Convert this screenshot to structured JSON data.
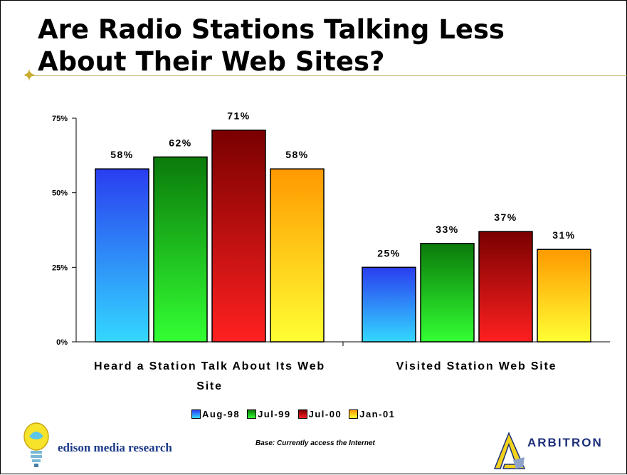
{
  "slide": {
    "title_line1": "Are Radio Stations Talking Less",
    "title_line2": "About Their Web Sites?",
    "base_note": "Base: Currently access the Internet",
    "edison_text": "edison media research",
    "arbitron_text": "ARBITRON"
  },
  "colors": {
    "Aug-98": [
      "#2a3df0",
      "#33d8ff"
    ],
    "Jul-99": [
      "#0a7a0a",
      "#33ff33"
    ],
    "Jul-00": [
      "#7a0000",
      "#ff2020"
    ],
    "Jan-01": [
      "#ff9900",
      "#ffff33"
    ]
  },
  "chart_data": {
    "type": "bar",
    "title": "Are Radio Stations Talking Less About Their Web Sites?",
    "categories": [
      "Heard a Station Talk About Its Web Site",
      "Visited Station Web Site"
    ],
    "series": [
      {
        "name": "Aug-98",
        "values": [
          58,
          25
        ],
        "labels": [
          "58%",
          "25%"
        ]
      },
      {
        "name": "Jul-99",
        "values": [
          62,
          33
        ],
        "labels": [
          "62%",
          "33%"
        ]
      },
      {
        "name": "Jul-00",
        "values": [
          71,
          37
        ],
        "labels": [
          "71%",
          "37%"
        ]
      },
      {
        "name": "Jan-01",
        "values": [
          58,
          31
        ],
        "labels": [
          "58%",
          "31%"
        ]
      }
    ],
    "yticks": [
      "0%",
      "25%",
      "50%",
      "75%"
    ],
    "ytick_values": [
      0,
      25,
      50,
      75
    ],
    "ylim": [
      0,
      75
    ],
    "xlabel": "",
    "ylabel": "",
    "grid": false,
    "legend_position": "bottom"
  }
}
